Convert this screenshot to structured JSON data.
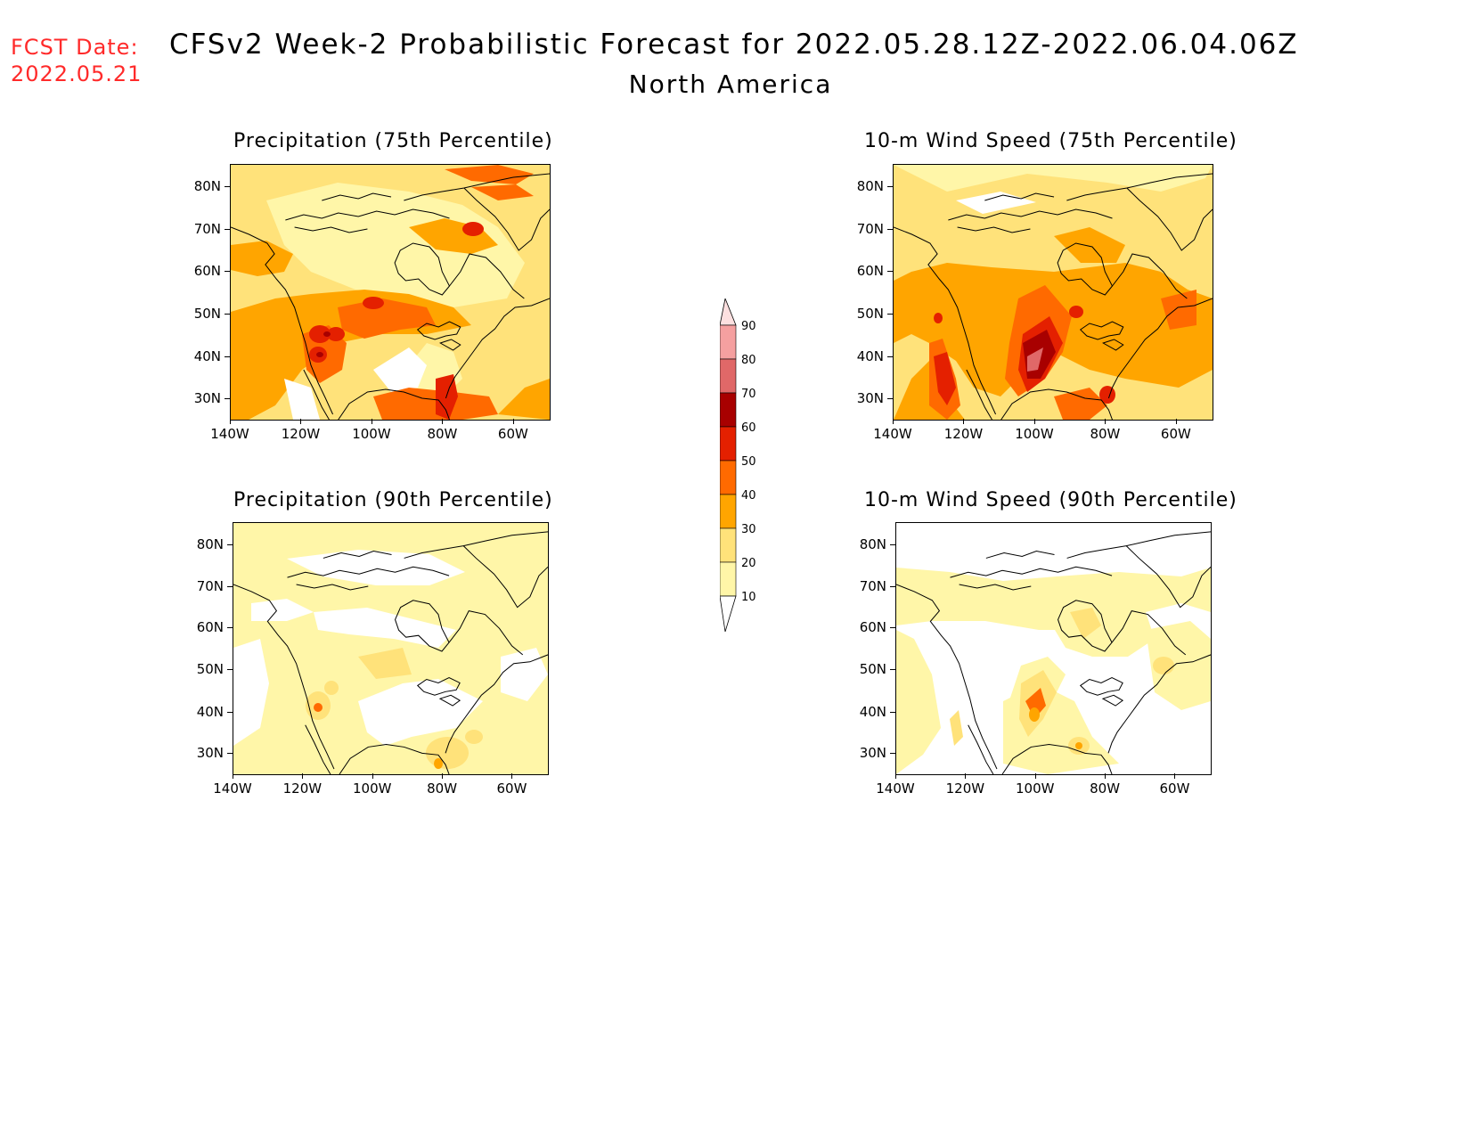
{
  "header": {
    "fcst_line1": "FCST Date:",
    "fcst_line2": "2022.05.21",
    "title": "CFSv2 Week-2 Probabilistic Forecast for 2022.05.28.12Z-2022.06.04.06Z",
    "subtitle": "North America"
  },
  "colors": {
    "fcst_text": "#ff2a2a",
    "levels": [
      "#ffffff",
      "#fff6a8",
      "#ffe27a",
      "#ffa500",
      "#ff6a00",
      "#e42000",
      "#a80000",
      "#e06868",
      "#f5a0a0",
      "#fde0e0"
    ]
  },
  "axes": {
    "lat_ticks": [
      "80N",
      "70N",
      "60N",
      "50N",
      "40N",
      "30N"
    ],
    "lon_ticks": [
      "140W",
      "120W",
      "100W",
      "80W",
      "60W"
    ]
  },
  "colorbar": {
    "labels": [
      "90",
      "80",
      "70",
      "60",
      "50",
      "40",
      "30",
      "20",
      "10"
    ]
  },
  "panels": [
    {
      "id": "precip75",
      "title": "Precipitation (75th Percentile)"
    },
    {
      "id": "wind75",
      "title": "10-m Wind Speed (75th Percentile)"
    },
    {
      "id": "precip90",
      "title": "Precipitation (90th Percentile)"
    },
    {
      "id": "wind90",
      "title": "10-m Wind Speed (90th Percentile)"
    }
  ]
}
